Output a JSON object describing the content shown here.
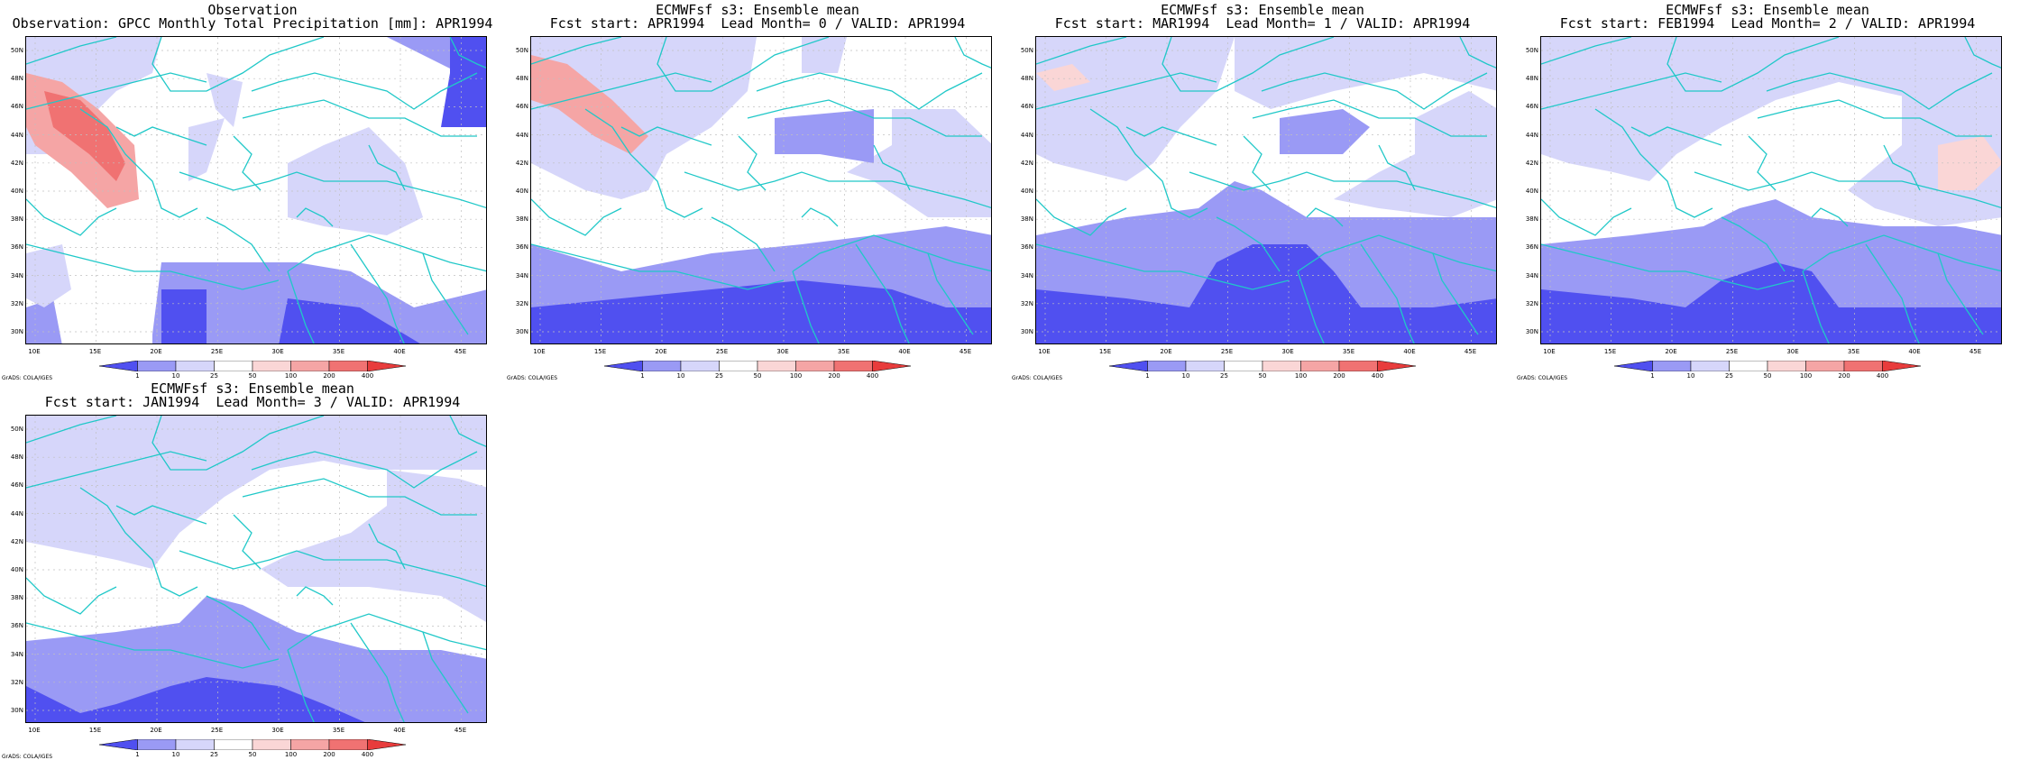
{
  "panels": [
    {
      "title1": "Observation",
      "title2": "Observation: GPCC Monthly Total Precipitation [mm]: APR1994",
      "variant": "obs"
    },
    {
      "title1": "ECMWFsf s3: Ensemble mean",
      "title2": "Fcst start: APR1994  Lead Month= 0 / VALID: APR1994",
      "variant": "lead0"
    },
    {
      "title1": "ECMWFsf s3: Ensemble mean",
      "title2": "Fcst start: MAR1994  Lead Month= 1 / VALID: APR1994",
      "variant": "lead1"
    },
    {
      "title1": "ECMWFsf s3: Ensemble mean",
      "title2": "Fcst start: FEB1994  Lead Month= 2 / VALID: APR1994",
      "variant": "lead2"
    },
    {
      "title1": "ECMWFsf s3: Ensemble mean",
      "title2": "Fcst start: JAN1994  Lead Month= 3 / VALID: APR1994",
      "variant": "lead3"
    }
  ],
  "map": {
    "lat_labels": [
      "50N",
      "48N",
      "46N",
      "44N",
      "42N",
      "40N",
      "38N",
      "36N",
      "34N",
      "32N",
      "30N"
    ],
    "lon_labels": [
      "10E",
      "15E",
      "20E",
      "25E",
      "30E",
      "35E",
      "40E",
      "45E"
    ],
    "lat_range": [
      30,
      51
    ],
    "lon_range": [
      8,
      46
    ]
  },
  "colorbar": {
    "labels": [
      "1",
      "10",
      "25",
      "50",
      "100",
      "200",
      "400"
    ],
    "colors": [
      "#5050f0",
      "#9a9af5",
      "#d6d6fa",
      "#ffffff",
      "#fad6d6",
      "#f5a5a5",
      "#f07272",
      "#e83c3c"
    ]
  },
  "footer": "GrADS: COLA/IGES",
  "colors": {
    "coast": "#20c8c8",
    "grid": "#c0c0c0",
    "frame": "#000000"
  }
}
